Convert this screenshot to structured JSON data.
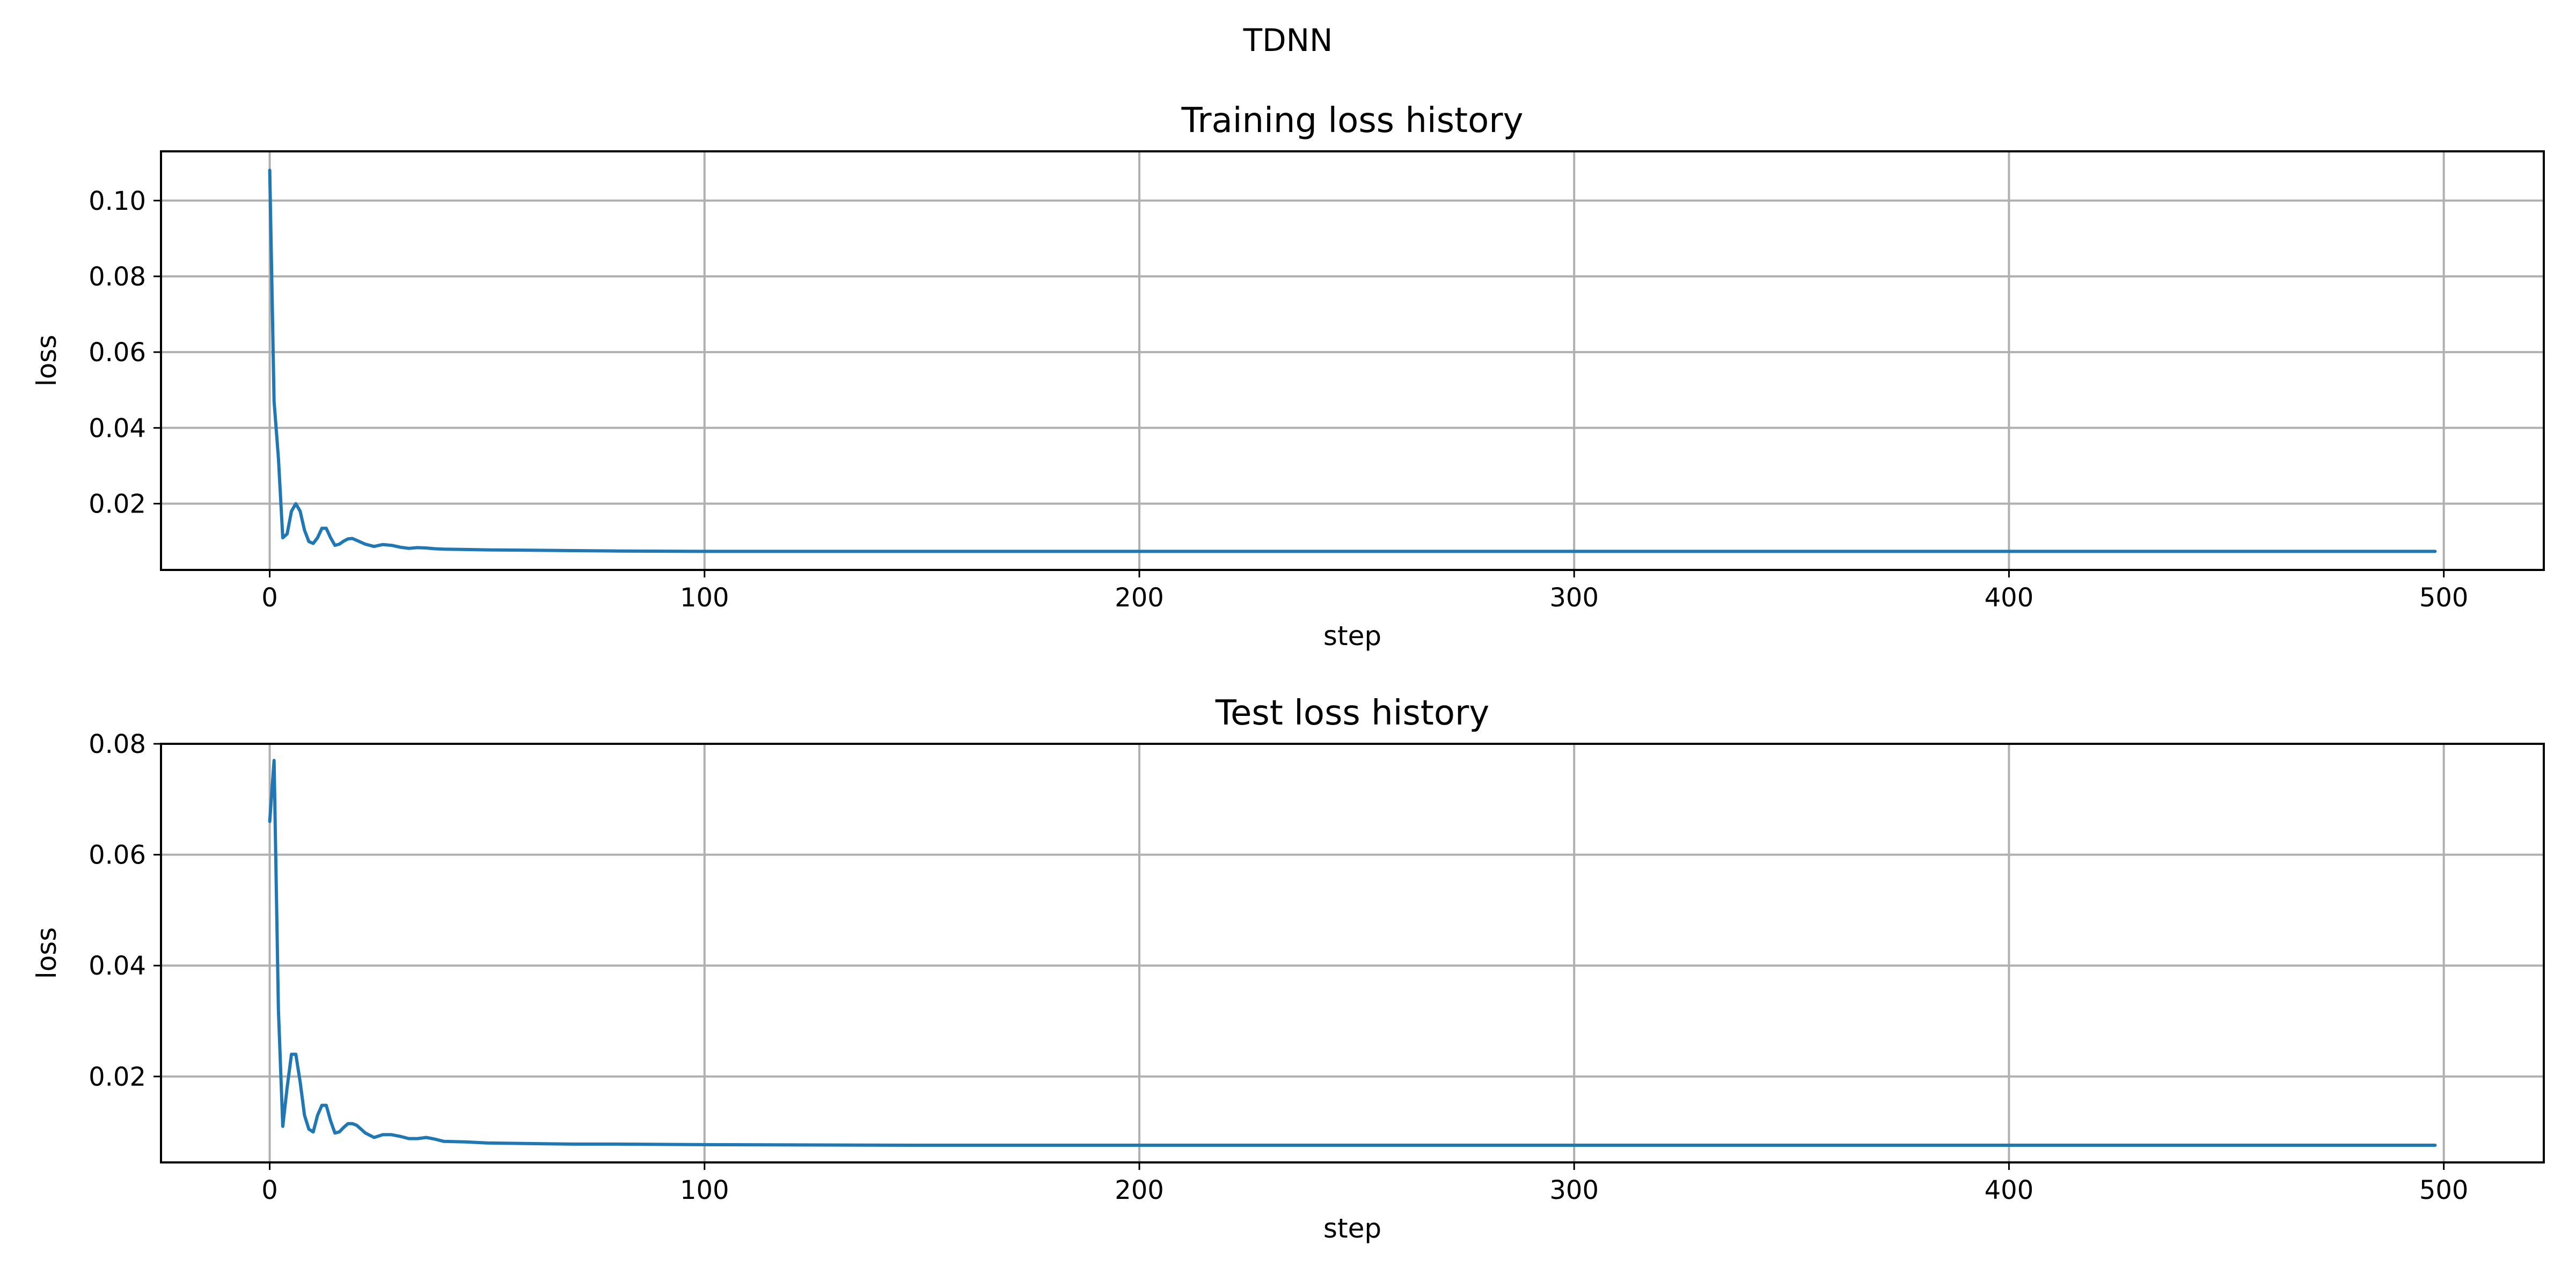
{
  "figure": {
    "suptitle": "TDNN"
  },
  "colors": {
    "series": "#1f77b4",
    "grid": "#b0b0b0"
  },
  "chart_data": [
    {
      "type": "line",
      "title": "Training loss history",
      "xlabel": "step",
      "ylabel": "loss",
      "xlim": [
        -25,
        523
      ],
      "ylim": [
        0.0025,
        0.113
      ],
      "xticks": [
        0,
        100,
        200,
        300,
        400,
        500
      ],
      "xtick_labels": [
        "0",
        "100",
        "200",
        "300",
        "400",
        "500"
      ],
      "yticks": [
        0.02,
        0.04,
        0.06,
        0.08,
        0.1
      ],
      "ytick_labels": [
        "0.02",
        "0.04",
        "0.06",
        "0.08",
        "0.10"
      ],
      "grid": true,
      "series": [
        {
          "x": [
            0,
            1,
            2,
            3,
            4,
            5,
            6,
            7,
            8,
            9,
            10,
            11,
            12,
            13,
            14,
            15,
            16,
            17,
            18,
            19,
            20,
            22,
            24,
            26,
            28,
            30,
            32,
            34,
            36,
            38,
            40,
            45,
            50,
            60,
            70,
            80,
            100,
            150,
            200,
            250,
            300,
            350,
            400,
            450,
            498
          ],
          "y": [
            0.108,
            0.047,
            0.032,
            0.011,
            0.012,
            0.018,
            0.02,
            0.018,
            0.013,
            0.01,
            0.0095,
            0.011,
            0.0135,
            0.0135,
            0.011,
            0.009,
            0.0093,
            0.0101,
            0.0107,
            0.0108,
            0.0103,
            0.0093,
            0.0087,
            0.0092,
            0.009,
            0.0085,
            0.0082,
            0.0084,
            0.0083,
            0.0081,
            0.008,
            0.0079,
            0.0078,
            0.0077,
            0.0076,
            0.0075,
            0.0074,
            0.0074,
            0.0074,
            0.0074,
            0.0074,
            0.0074,
            0.0074,
            0.0074,
            0.0074
          ]
        }
      ]
    },
    {
      "type": "line",
      "title": "Test loss history",
      "xlabel": "step",
      "ylabel": "loss",
      "xlim": [
        -25,
        523
      ],
      "ylim": [
        0.0045,
        0.08
      ],
      "xticks": [
        0,
        100,
        200,
        300,
        400,
        500
      ],
      "xtick_labels": [
        "0",
        "100",
        "200",
        "300",
        "400",
        "500"
      ],
      "yticks": [
        0.02,
        0.04,
        0.06,
        0.08
      ],
      "ytick_labels": [
        "0.02",
        "0.04",
        "0.06",
        "0.08"
      ],
      "grid": true,
      "series": [
        {
          "x": [
            0,
            1,
            2,
            3,
            4,
            5,
            6,
            7,
            8,
            9,
            10,
            11,
            12,
            13,
            14,
            15,
            16,
            17,
            18,
            19,
            20,
            22,
            24,
            26,
            28,
            30,
            32,
            34,
            36,
            38,
            40,
            45,
            50,
            60,
            70,
            80,
            100,
            150,
            200,
            250,
            300,
            350,
            400,
            450,
            498
          ],
          "y": [
            0.066,
            0.077,
            0.032,
            0.011,
            0.018,
            0.024,
            0.024,
            0.019,
            0.013,
            0.0105,
            0.01,
            0.013,
            0.0148,
            0.0148,
            0.012,
            0.0098,
            0.01,
            0.0108,
            0.0115,
            0.0115,
            0.0112,
            0.0098,
            0.009,
            0.0095,
            0.0095,
            0.0092,
            0.0088,
            0.0088,
            0.009,
            0.0087,
            0.0083,
            0.0082,
            0.008,
            0.0079,
            0.0078,
            0.0078,
            0.0077,
            0.0076,
            0.0076,
            0.0076,
            0.0076,
            0.0076,
            0.0076,
            0.0076,
            0.0076
          ]
        }
      ]
    }
  ]
}
